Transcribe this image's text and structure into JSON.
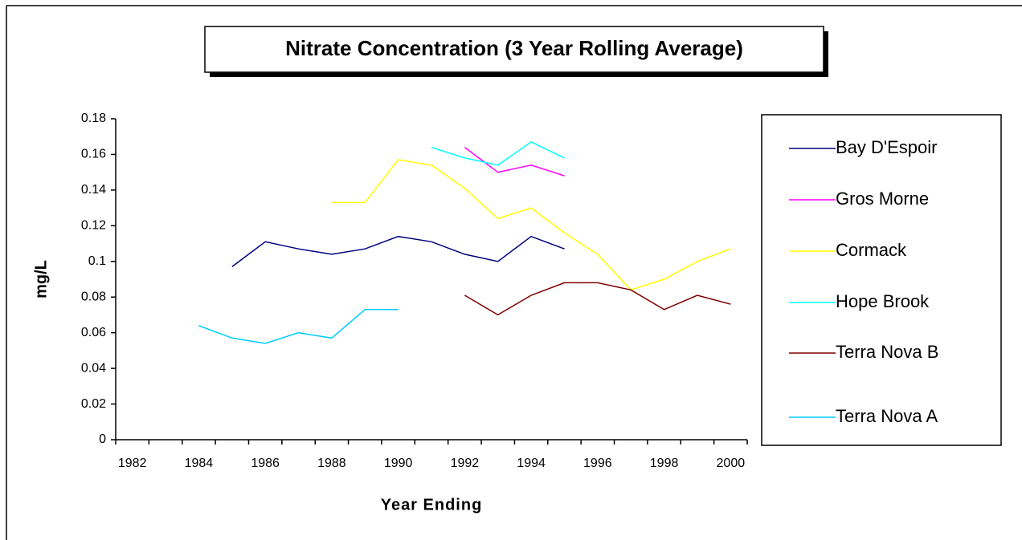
{
  "chart_data": {
    "type": "line",
    "title": "Nitrate Concentration (3 Year Rolling Average)",
    "x_label": "Year Ending",
    "y_label": "mg/L",
    "categories": [
      "1982",
      null,
      "1984",
      null,
      "1986",
      null,
      "1988",
      null,
      "1990",
      null,
      "1992",
      null,
      "1994",
      null,
      "1996",
      null,
      "1998",
      null,
      "2000"
    ],
    "ylim": [
      0,
      0.18
    ],
    "yticks": [
      0,
      0.02,
      0.04,
      0.06,
      0.08,
      0.1,
      0.12,
      0.14,
      0.16,
      0.18
    ],
    "grid": false,
    "legend": "right",
    "series": [
      {
        "name": "Bay D'Espoir",
        "color": "#000080",
        "values": [
          null,
          null,
          null,
          0.097,
          0.111,
          0.107,
          0.104,
          0.107,
          0.114,
          0.111,
          0.104,
          0.1,
          0.114,
          0.107,
          null,
          null,
          null,
          null,
          null
        ]
      },
      {
        "name": "Gros Morne",
        "color": "#ff00ff",
        "values": [
          null,
          null,
          null,
          null,
          null,
          null,
          null,
          null,
          null,
          null,
          0.164,
          0.15,
          0.154,
          0.148,
          null,
          null,
          null,
          null,
          null
        ]
      },
      {
        "name": "Cormack",
        "color": "#ffff00",
        "values": [
          null,
          null,
          null,
          null,
          null,
          null,
          0.133,
          0.133,
          0.157,
          0.154,
          0.141,
          0.124,
          0.13,
          0.116,
          0.104,
          0.084,
          0.09,
          0.1,
          0.107
        ]
      },
      {
        "name": "Hope Brook",
        "color": "#00ffff",
        "values": [
          null,
          null,
          null,
          null,
          null,
          null,
          null,
          null,
          null,
          0.164,
          0.158,
          0.154,
          0.167,
          0.158,
          null,
          null,
          null,
          null,
          null
        ]
      },
      {
        "name": "Terra Nova B",
        "color": "#800000",
        "values": [
          null,
          null,
          null,
          null,
          null,
          null,
          null,
          null,
          null,
          null,
          0.081,
          0.07,
          0.081,
          0.088,
          0.088,
          0.084,
          0.073,
          0.081,
          0.076
        ]
      },
      {
        "name": "Terra Nova A",
        "color": "#00ccff",
        "values": [
          null,
          null,
          0.064,
          0.057,
          0.054,
          0.06,
          0.057,
          0.073,
          0.073,
          null,
          null,
          null,
          null,
          null,
          null,
          null,
          null,
          null,
          null
        ]
      }
    ]
  }
}
